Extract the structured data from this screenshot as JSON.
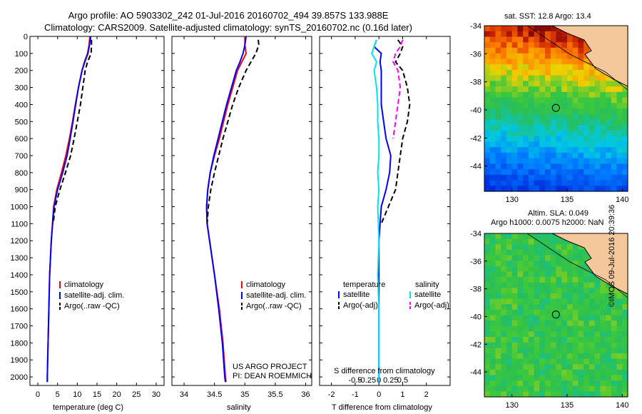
{
  "header": {
    "line1": "Argo profile: AO 5903302_242 01-Jul-2016 20160702_494 39.857S 133.988E",
    "line2": "Climatology: CARS2009. Satellite-adjusted climatology: synTS_20160702.nc (0.16d later)"
  },
  "colors": {
    "climatology": "#ff0000",
    "satellite": "#0000ff",
    "argo": "#000000",
    "sal_satellite": "#00e5ee",
    "sal_argo": "#ff00ff"
  },
  "chart_data": [
    {
      "type": "line",
      "xlabel": "temperature (deg C)",
      "ylabel": "",
      "xlim": [
        -2,
        32
      ],
      "ylim": [
        2050,
        0
      ],
      "xticks": [
        0,
        5,
        10,
        15,
        20,
        25,
        30
      ],
      "yticks": [
        0,
        100,
        200,
        300,
        400,
        500,
        600,
        700,
        800,
        900,
        1000,
        1100,
        1200,
        1300,
        1400,
        1500,
        1600,
        1700,
        1800,
        1900,
        2000
      ],
      "legend": {
        "position": "lower-middle",
        "entries": [
          "climatology",
          "satellite-adj. clim.",
          "Argo(..raw -QC)"
        ]
      },
      "series": [
        {
          "name": "climatology",
          "color": "#ff0000",
          "style": "solid",
          "depth": [
            0,
            50,
            100,
            150,
            200,
            300,
            400,
            500,
            600,
            700,
            800,
            900,
            1000,
            1200,
            1400,
            1600,
            1800,
            2000,
            2030
          ],
          "values": [
            13.2,
            13.0,
            12.6,
            11.8,
            11.2,
            10.3,
            9.5,
            8.8,
            8.0,
            7.1,
            6.0,
            4.8,
            4.0,
            3.4,
            3.0,
            2.8,
            2.6,
            2.4,
            2.4
          ]
        },
        {
          "name": "satellite-adj. clim.",
          "color": "#0000ff",
          "style": "solid",
          "depth": [
            0,
            50,
            100,
            150,
            200,
            300,
            400,
            500,
            600,
            700,
            800,
            900,
            1000,
            1200,
            1400,
            1600,
            1800,
            2000,
            2030
          ],
          "values": [
            13.4,
            13.1,
            12.7,
            11.9,
            11.2,
            10.3,
            9.6,
            8.9,
            8.2,
            7.4,
            6.3,
            5.0,
            4.1,
            3.4,
            3.0,
            2.8,
            2.6,
            2.4,
            2.4
          ]
        },
        {
          "name": "Argo(..raw -QC)",
          "color": "#000000",
          "style": "dashed",
          "depth": [
            20,
            50,
            100,
            150,
            200,
            300,
            400,
            500,
            600,
            700,
            800,
            900,
            1000,
            1100
          ],
          "values": [
            13.6,
            13.6,
            13.5,
            12.6,
            12.0,
            11.4,
            10.8,
            10.0,
            9.2,
            8.3,
            7.0,
            5.6,
            4.4,
            3.9
          ]
        }
      ]
    },
    {
      "type": "line",
      "xlabel": "salinity",
      "ylabel": "",
      "xlim": [
        33.8,
        36.1
      ],
      "ylim": [
        2050,
        0
      ],
      "xticks": [
        34,
        34.5,
        35,
        35.5,
        36
      ],
      "legend": {
        "position": "lower-middle",
        "entries": [
          "climatology",
          "satellite-adj. clim.",
          "Argo(..raw -QC)"
        ]
      },
      "annotation": [
        "US ARGO PROJECT",
        "PI: DEAN ROEMMICH"
      ],
      "series": [
        {
          "name": "climatology",
          "color": "#ff0000",
          "style": "solid",
          "depth": [
            0,
            50,
            100,
            150,
            200,
            300,
            400,
            500,
            600,
            700,
            800,
            900,
            1000,
            1100,
            1200,
            1400,
            1600,
            1800,
            2000,
            2030
          ],
          "values": [
            35.0,
            35.0,
            35.02,
            34.95,
            34.88,
            34.8,
            34.72,
            34.65,
            34.58,
            34.5,
            34.43,
            34.39,
            34.37,
            34.38,
            34.42,
            34.5,
            34.58,
            34.64,
            34.68,
            34.69
          ]
        },
        {
          "name": "satellite-adj. clim.",
          "color": "#0000ff",
          "style": "solid",
          "depth": [
            0,
            50,
            100,
            150,
            200,
            300,
            400,
            500,
            600,
            700,
            800,
            900,
            1000,
            1100,
            1200,
            1400,
            1600,
            1800,
            2000,
            2030
          ],
          "values": [
            35.02,
            35.0,
            34.97,
            34.92,
            34.86,
            34.78,
            34.7,
            34.63,
            34.56,
            34.49,
            34.43,
            34.39,
            34.37,
            34.38,
            34.42,
            34.5,
            34.57,
            34.63,
            34.67,
            34.68
          ]
        },
        {
          "name": "Argo(..raw -QC)",
          "color": "#000000",
          "style": "dashed",
          "depth": [
            20,
            50,
            100,
            150,
            200,
            300,
            400,
            500,
            600,
            700,
            800,
            900,
            1000,
            1100
          ],
          "values": [
            35.22,
            35.23,
            35.18,
            35.1,
            35.02,
            34.9,
            34.8,
            34.72,
            34.64,
            34.57,
            34.5,
            34.44,
            34.4,
            34.38
          ]
        }
      ]
    },
    {
      "type": "line",
      "xlabel": "T difference from climatology",
      "xlabel2": "S difference from climatology",
      "xlim": [
        -2.5,
        3
      ],
      "xticks": [
        -2,
        -1,
        0,
        1,
        2
      ],
      "xticks2": [
        "-0.5",
        "-0.25",
        "0",
        "0.25",
        "0.5"
      ],
      "ylim": [
        2050,
        0
      ],
      "legend": {
        "position": "lower-middle",
        "temperature_title": "temperature",
        "salinity_title": "salinity",
        "entries": [
          "satellite",
          "Argo(-adj)",
          "satellite",
          "Argo(-adj)"
        ]
      },
      "series": [
        {
          "name": "satellite",
          "color": "#0000ff",
          "style": "solid",
          "depth": [
            20,
            60,
            100,
            150,
            200,
            300,
            400,
            500,
            600,
            700,
            800,
            900,
            1000,
            1200,
            1500,
            2030
          ],
          "values": [
            -0.1,
            -0.2,
            0.1,
            0.05,
            0.1,
            0.1,
            0.1,
            0.2,
            0.3,
            0.5,
            0.45,
            0.3,
            0.1,
            0.0,
            0.0,
            0.0
          ]
        },
        {
          "name": "Argo(-adj)",
          "color": "#000000",
          "style": "dashed",
          "depth": [
            20,
            60,
            100,
            150,
            200,
            300,
            400,
            500,
            600,
            700,
            800,
            900,
            1000,
            1100
          ],
          "values": [
            0.8,
            1.0,
            0.9,
            0.7,
            1.0,
            1.2,
            1.3,
            1.2,
            1.0,
            0.9,
            0.8,
            0.7,
            0.4,
            0.1
          ]
        },
        {
          "name": "satellite",
          "color": "#00e5ee",
          "style": "solid",
          "depth": [
            20,
            60,
            100,
            150,
            200,
            300,
            400,
            500,
            600,
            700,
            800,
            900,
            1000,
            1200,
            1400,
            1600,
            1800,
            2030
          ],
          "values": [
            -0.1,
            -0.2,
            -0.3,
            -0.1,
            -0.2,
            -0.1,
            -0.05,
            -0.05,
            0.0,
            0.0,
            -0.05,
            0.0,
            -0.05,
            0.0,
            -0.05,
            0.0,
            0.0,
            0.0
          ]
        },
        {
          "name": "Argo(-adj)",
          "color": "#ff00ff",
          "style": "dashed",
          "depth": [
            20,
            60,
            100,
            150,
            200,
            300,
            400,
            500,
            600
          ],
          "values": [
            1.0,
            0.9,
            0.7,
            0.6,
            0.8,
            0.9,
            0.8,
            0.7,
            0.6
          ]
        }
      ]
    },
    {
      "type": "heatmap",
      "title": "sat. SST: 12.8 Argo: 13.4",
      "xlim": [
        127.5,
        140.5
      ],
      "ylim": [
        -45.8,
        -34
      ],
      "xticks": [
        130,
        135,
        140
      ],
      "yticks": [
        -34,
        -36,
        -38,
        -40,
        -42,
        -44
      ],
      "marker": {
        "lon": 133.988,
        "lat": -39.857
      }
    },
    {
      "type": "heatmap",
      "title": "Altim. SLA: 0.049",
      "subtitle": "Argo h1000: 0.0075 h2000: NaN",
      "xlim": [
        127.5,
        140.5
      ],
      "ylim": [
        -45.8,
        -34
      ],
      "xticks": [
        130,
        135,
        140
      ],
      "yticks": [
        -34,
        -36,
        -38,
        -40,
        -42,
        -44
      ],
      "marker": {
        "lon": 133.988,
        "lat": -39.857
      }
    }
  ],
  "stamp": "©IMOS 09-Jul-2016 20:39:36"
}
